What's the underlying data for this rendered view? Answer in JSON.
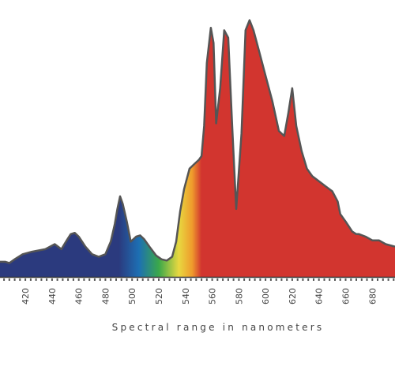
{
  "chart_data": {
    "type": "area",
    "title": "",
    "xlabel": "Spectral range in nanometers",
    "ylabel": "",
    "xlim": [
      401,
      697
    ],
    "ylim": [
      0,
      100
    ],
    "grid": false,
    "legend": "none",
    "x_ticks": [
      420,
      440,
      460,
      480,
      500,
      520,
      540,
      560,
      580,
      600,
      620,
      640,
      660,
      680
    ],
    "series": [
      {
        "x": [
          401,
          405,
          408,
          412,
          418,
          425,
          435,
          442,
          447,
          451,
          454,
          457,
          460,
          465,
          470,
          475,
          480,
          484,
          487,
          489,
          491,
          493,
          496,
          499,
          503,
          506,
          509,
          513,
          518,
          522,
          526,
          530,
          533,
          536,
          539,
          543,
          547,
          550,
          552,
          554,
          556,
          559,
          561,
          563,
          566,
          569,
          572,
          575,
          578,
          582,
          585,
          588,
          591,
          595,
          600,
          605,
          610,
          614,
          617,
          620,
          623,
          627,
          631,
          635,
          640,
          645,
          650,
          654,
          656,
          660,
          665,
          668,
          670,
          675,
          680,
          685,
          690,
          697
        ],
        "y": [
          6,
          6,
          5.5,
          7,
          9,
          10,
          11,
          13,
          11,
          14.5,
          17,
          17.5,
          16,
          12,
          9,
          8,
          9,
          14,
          21,
          27,
          32,
          29,
          22,
          14,
          16,
          16.5,
          15,
          12,
          8.5,
          7,
          6.5,
          8,
          14,
          26,
          35,
          43,
          45,
          46.5,
          48,
          60,
          85,
          99,
          93,
          61,
          75,
          98,
          95,
          60,
          27,
          57,
          98,
          102,
          98,
          90,
          80,
          70,
          58,
          56,
          65,
          75,
          60,
          50,
          43,
          40,
          38,
          36,
          34,
          30,
          25,
          22,
          18,
          17,
          17,
          16,
          14.5,
          14.5,
          13,
          12
        ]
      }
    ],
    "color_bands": [
      {
        "color": "#2b3a7e"
      },
      {
        "color": "#1d6fb3"
      },
      {
        "color": "#2aa0c8"
      },
      {
        "color": "#3aa84a"
      },
      {
        "color": "#e8d840"
      },
      {
        "color": "#ef9b2c"
      },
      {
        "color": "#d2352f"
      }
    ],
    "outline_color": "#555555"
  }
}
